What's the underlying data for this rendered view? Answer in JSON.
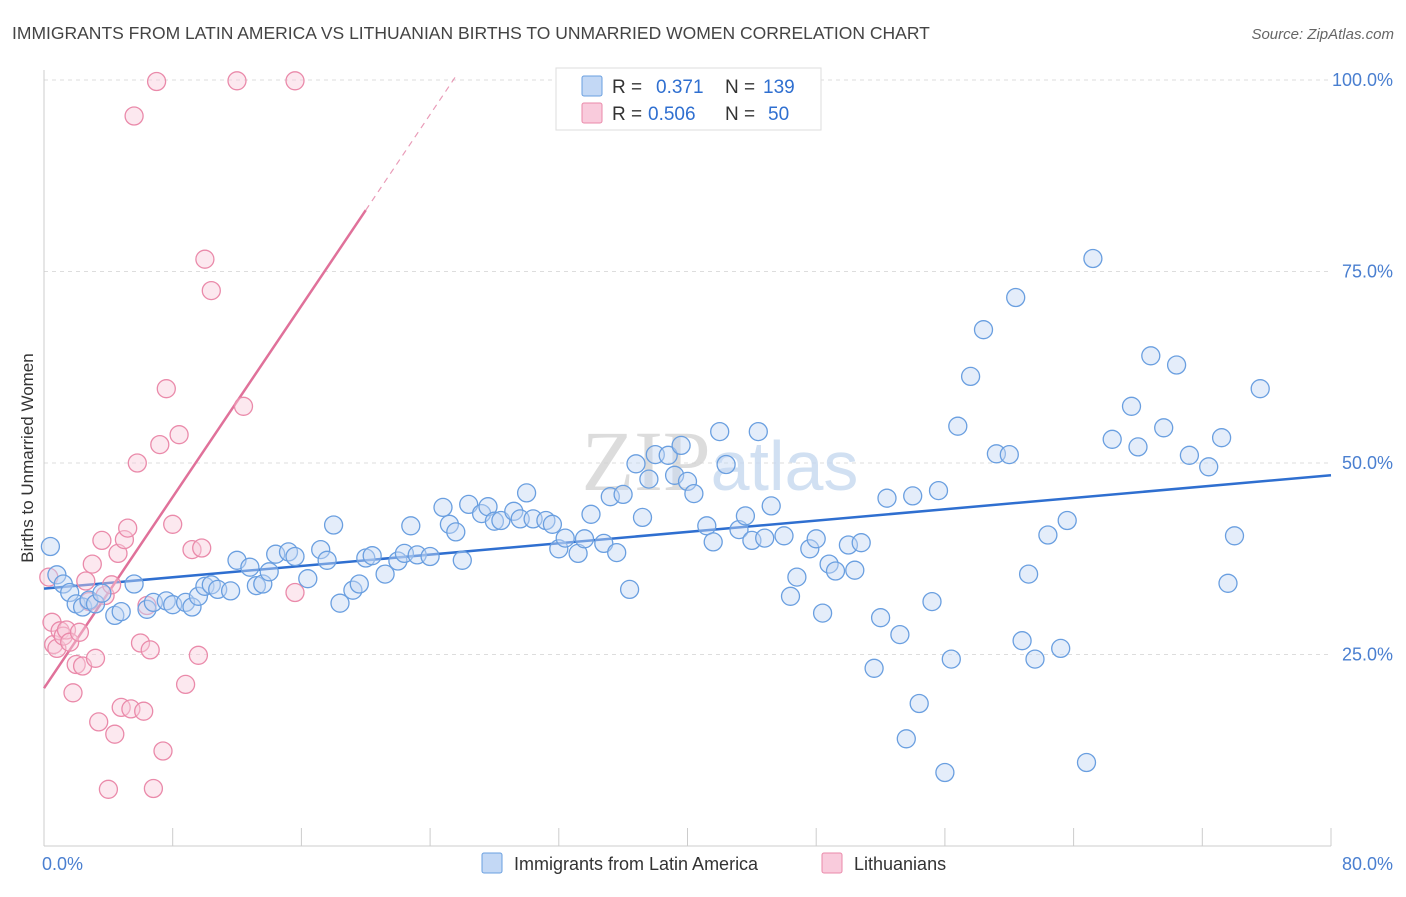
{
  "chart_data": {
    "type": "scatter",
    "title": "IMMIGRANTS FROM LATIN AMERICA VS LITHUANIAN BIRTHS TO UNMARRIED WOMEN CORRELATION CHART",
    "source": "Source: ZipAtlas.com",
    "xlabel": "",
    "ylabel": "Births to Unmarried Women",
    "xlim": [
      0,
      80
    ],
    "ylim": [
      0,
      102
    ],
    "x_tick_labels": [
      "0.0%",
      "80.0%"
    ],
    "y_ticks": [
      25,
      50,
      75,
      100
    ],
    "y_tick_labels": [
      "25.0%",
      "50.0%",
      "75.0%",
      "100.0%"
    ],
    "grid": true,
    "watermark": "ZIPatlas",
    "legend_position": "top-center",
    "colors": {
      "series_0": "#6a9fe0",
      "series_0_fill": "#c3d8f5",
      "series_0_line": "#2f6fd0",
      "series_1": "#ea8aaa",
      "series_1_fill": "#f9cbdc",
      "series_1_line": "#e0719a",
      "tick_label": "#4a7fd0",
      "title": "#444444"
    },
    "legend": [
      {
        "r_label": "R =",
        "r_value": "0.371",
        "n_label": "N =",
        "n_value": "139"
      },
      {
        "r_label": "R =",
        "r_value": "0.506",
        "n_label": "N =",
        "n_value": "50"
      }
    ],
    "bottom_legend": [
      "Immigrants from Latin America",
      "Lithuanians"
    ],
    "series": [
      {
        "name": "Immigrants from Latin America",
        "trend": {
          "x0": 0,
          "y0": 33.6,
          "x1": 80,
          "y1": 48.4
        },
        "points": [
          [
            0.4,
            39.1
          ],
          [
            0.8,
            35.4
          ],
          [
            1.2,
            34.2
          ],
          [
            1.6,
            33.1
          ],
          [
            2.0,
            31.6
          ],
          [
            2.4,
            31.2
          ],
          [
            2.8,
            32.1
          ],
          [
            3.2,
            31.6
          ],
          [
            3.6,
            33.0
          ],
          [
            4.4,
            30.1
          ],
          [
            4.8,
            30.6
          ],
          [
            5.6,
            34.2
          ],
          [
            6.4,
            30.9
          ],
          [
            6.8,
            31.8
          ],
          [
            7.6,
            32.0
          ],
          [
            8.0,
            31.5
          ],
          [
            8.8,
            31.8
          ],
          [
            9.2,
            31.2
          ],
          [
            9.6,
            32.6
          ],
          [
            10.0,
            33.9
          ],
          [
            10.4,
            34.1
          ],
          [
            10.8,
            33.5
          ],
          [
            11.6,
            33.3
          ],
          [
            12.0,
            37.3
          ],
          [
            12.8,
            36.4
          ],
          [
            13.2,
            34.0
          ],
          [
            13.6,
            34.2
          ],
          [
            14.0,
            35.8
          ],
          [
            14.4,
            38.1
          ],
          [
            15.2,
            38.4
          ],
          [
            15.6,
            37.8
          ],
          [
            16.4,
            34.9
          ],
          [
            17.2,
            38.7
          ],
          [
            17.6,
            37.3
          ],
          [
            18.0,
            41.9
          ],
          [
            18.4,
            31.7
          ],
          [
            19.2,
            33.4
          ],
          [
            19.6,
            34.2
          ],
          [
            20.0,
            37.6
          ],
          [
            20.4,
            37.9
          ],
          [
            21.2,
            35.5
          ],
          [
            22.0,
            37.2
          ],
          [
            22.4,
            38.2
          ],
          [
            22.8,
            41.8
          ],
          [
            23.2,
            38.0
          ],
          [
            24.0,
            37.8
          ],
          [
            24.8,
            44.2
          ],
          [
            25.2,
            42.0
          ],
          [
            25.6,
            41.0
          ],
          [
            26.0,
            37.3
          ],
          [
            26.4,
            44.6
          ],
          [
            27.2,
            43.4
          ],
          [
            27.6,
            44.3
          ],
          [
            28.0,
            42.4
          ],
          [
            28.4,
            42.5
          ],
          [
            29.2,
            43.7
          ],
          [
            29.6,
            42.7
          ],
          [
            30.0,
            46.1
          ],
          [
            30.4,
            42.7
          ],
          [
            31.2,
            42.5
          ],
          [
            31.6,
            42.0
          ],
          [
            32.0,
            38.8
          ],
          [
            32.4,
            40.2
          ],
          [
            33.2,
            38.2
          ],
          [
            33.6,
            40.1
          ],
          [
            34.0,
            43.3
          ],
          [
            34.8,
            39.5
          ],
          [
            35.2,
            45.6
          ],
          [
            35.6,
            38.3
          ],
          [
            36.0,
            45.9
          ],
          [
            36.4,
            33.5
          ],
          [
            36.8,
            49.9
          ],
          [
            37.2,
            42.9
          ],
          [
            37.6,
            47.9
          ],
          [
            38.0,
            51.1
          ],
          [
            38.8,
            51.0
          ],
          [
            39.2,
            48.4
          ],
          [
            39.6,
            52.3
          ],
          [
            40.0,
            47.6
          ],
          [
            40.4,
            46.0
          ],
          [
            41.2,
            41.8
          ],
          [
            41.6,
            39.7
          ],
          [
            42.0,
            54.1
          ],
          [
            42.4,
            49.8
          ],
          [
            43.2,
            41.3
          ],
          [
            43.6,
            43.1
          ],
          [
            44.0,
            39.9
          ],
          [
            44.4,
            54.1
          ],
          [
            44.8,
            40.2
          ],
          [
            45.2,
            44.4
          ],
          [
            46.0,
            40.5
          ],
          [
            46.4,
            32.6
          ],
          [
            46.8,
            35.1
          ],
          [
            47.6,
            38.8
          ],
          [
            48.0,
            40.1
          ],
          [
            48.4,
            30.4
          ],
          [
            48.8,
            36.8
          ],
          [
            49.2,
            35.9
          ],
          [
            50.0,
            39.3
          ],
          [
            50.4,
            36.0
          ],
          [
            50.8,
            39.6
          ],
          [
            51.6,
            23.2
          ],
          [
            52.0,
            29.8
          ],
          [
            52.4,
            45.4
          ],
          [
            53.2,
            27.6
          ],
          [
            53.6,
            14.0
          ],
          [
            54.0,
            45.7
          ],
          [
            54.4,
            18.6
          ],
          [
            55.2,
            31.9
          ],
          [
            55.6,
            46.4
          ],
          [
            56.0,
            9.6
          ],
          [
            56.4,
            24.4
          ],
          [
            56.8,
            54.8
          ],
          [
            57.6,
            61.3
          ],
          [
            58.4,
            67.4
          ],
          [
            59.2,
            51.2
          ],
          [
            60.0,
            51.1
          ],
          [
            60.4,
            71.6
          ],
          [
            60.8,
            26.8
          ],
          [
            61.2,
            35.5
          ],
          [
            61.6,
            24.4
          ],
          [
            62.4,
            40.6
          ],
          [
            63.2,
            25.8
          ],
          [
            63.6,
            42.5
          ],
          [
            64.8,
            10.9
          ],
          [
            65.2,
            76.7
          ],
          [
            66.4,
            53.1
          ],
          [
            67.6,
            57.4
          ],
          [
            68.0,
            52.1
          ],
          [
            68.8,
            64.0
          ],
          [
            69.6,
            54.6
          ],
          [
            70.4,
            62.8
          ],
          [
            71.2,
            51.0
          ],
          [
            72.4,
            49.5
          ],
          [
            73.2,
            53.3
          ],
          [
            73.6,
            34.3
          ],
          [
            74.0,
            40.5
          ],
          [
            75.6,
            59.7
          ]
        ]
      },
      {
        "name": "Lithuanians",
        "trend": {
          "x0": 0,
          "y0": 20.6,
          "x1": 20,
          "y1": 83.0,
          "dash_x1": 25.6,
          "dash_y1": 100.5
        },
        "points": [
          [
            0.3,
            35.1
          ],
          [
            0.5,
            29.2
          ],
          [
            0.6,
            26.3
          ],
          [
            0.8,
            25.8
          ],
          [
            1.0,
            28.1
          ],
          [
            1.2,
            27.4
          ],
          [
            1.4,
            28.2
          ],
          [
            1.6,
            26.6
          ],
          [
            1.8,
            20.0
          ],
          [
            2.0,
            23.7
          ],
          [
            2.2,
            27.9
          ],
          [
            2.4,
            23.5
          ],
          [
            2.6,
            34.6
          ],
          [
            2.8,
            31.9
          ],
          [
            3.0,
            36.8
          ],
          [
            3.2,
            24.5
          ],
          [
            3.4,
            16.2
          ],
          [
            3.6,
            39.9
          ],
          [
            3.8,
            32.7
          ],
          [
            4.0,
            7.4
          ],
          [
            4.2,
            34.1
          ],
          [
            4.4,
            14.6
          ],
          [
            4.6,
            38.2
          ],
          [
            4.8,
            18.1
          ],
          [
            5.0,
            40.0
          ],
          [
            5.2,
            41.5
          ],
          [
            5.4,
            17.9
          ],
          [
            5.6,
            95.3
          ],
          [
            5.8,
            50.0
          ],
          [
            6.0,
            26.5
          ],
          [
            6.2,
            17.6
          ],
          [
            6.4,
            31.4
          ],
          [
            6.6,
            25.6
          ],
          [
            6.8,
            7.5
          ],
          [
            7.0,
            99.8
          ],
          [
            7.2,
            52.4
          ],
          [
            7.4,
            12.4
          ],
          [
            7.6,
            59.7
          ],
          [
            8.0,
            42.0
          ],
          [
            8.4,
            53.7
          ],
          [
            8.8,
            21.1
          ],
          [
            9.2,
            38.7
          ],
          [
            9.6,
            24.9
          ],
          [
            9.8,
            38.9
          ],
          [
            10.0,
            76.6
          ],
          [
            10.4,
            72.5
          ],
          [
            12.0,
            99.9
          ],
          [
            12.4,
            57.4
          ],
          [
            15.6,
            99.9
          ],
          [
            15.6,
            33.1
          ]
        ]
      }
    ]
  }
}
